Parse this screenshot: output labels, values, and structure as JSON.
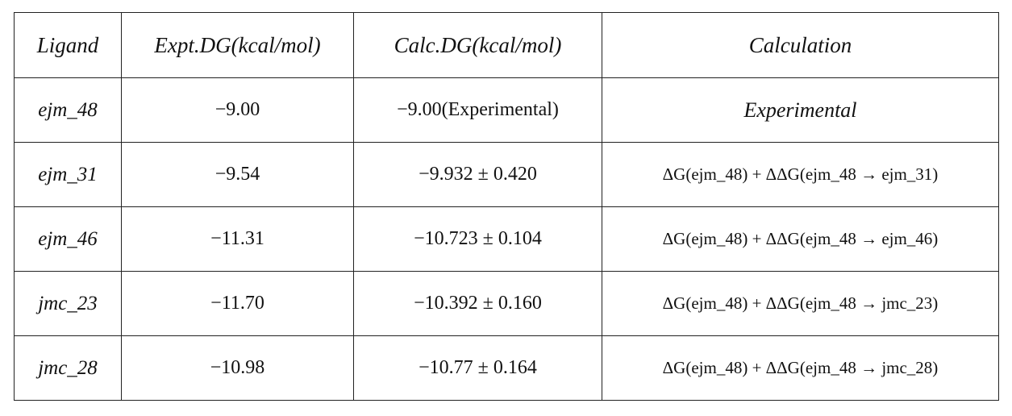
{
  "table": {
    "header": [
      "Ligand",
      "Expt.DG(kcal/mol)",
      "Calc.DG(kcal/mol)",
      "Calculation"
    ],
    "rows": [
      [
        "ejm_48",
        "−9.00",
        "−9.00(Experimental)",
        "Experimental"
      ],
      [
        "ejm_31",
        "−9.54",
        "−9.932 ± 0.420",
        "ΔG(ejm_48) + ΔΔG(ejm_48 → ejm_31)"
      ],
      [
        "ejm_46",
        "−11.31",
        "−10.723 ± 0.104",
        "ΔG(ejm_48) + ΔΔG(ejm_48 → ejm_46)"
      ],
      [
        "jmc_23",
        "−11.70",
        "−10.392 ± 0.160",
        "ΔG(ejm_48) + ΔΔG(ejm_48 → jmc_23)"
      ],
      [
        "jmc_28",
        "−10.98",
        "−10.77 ± 0.164",
        "ΔG(ejm_48) + ΔΔG(ejm_48 → jmc_28)"
      ]
    ]
  }
}
